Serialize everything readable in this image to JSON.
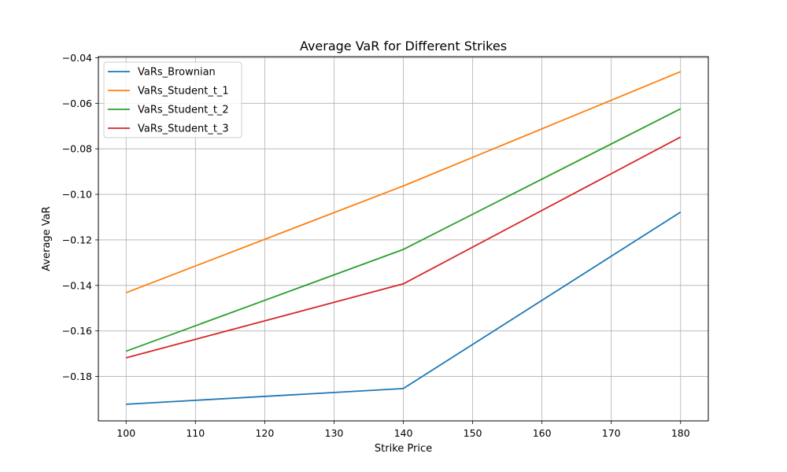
{
  "chart_data": {
    "type": "line",
    "title": "Average VaR for Different Strikes",
    "xlabel": "Strike Price",
    "ylabel": "Average VaR",
    "x": [
      100,
      140,
      180
    ],
    "xlim": [
      96,
      184
    ],
    "ylim": [
      -0.1995,
      -0.0395
    ],
    "xticks": [
      100,
      110,
      120,
      130,
      140,
      150,
      160,
      170,
      180
    ],
    "xtick_labels": [
      "100",
      "110",
      "120",
      "130",
      "140",
      "150",
      "160",
      "170",
      "180"
    ],
    "yticks": [
      -0.18,
      -0.16,
      -0.14,
      -0.12,
      -0.1,
      -0.08,
      -0.06,
      -0.04
    ],
    "ytick_labels": [
      "−0.18",
      "−0.16",
      "−0.14",
      "−0.12",
      "−0.10",
      "−0.08",
      "−0.06",
      "−0.04"
    ],
    "grid": true,
    "legend_position": "top-left",
    "series": [
      {
        "name": "VaRs_Brownian",
        "color": "#1f77b4",
        "values": [
          -0.1922,
          -0.1853,
          -0.1078
        ]
      },
      {
        "name": "VaRs_Student_t_1",
        "color": "#ff7f0e",
        "values": [
          -0.1432,
          -0.0963,
          -0.0461
        ]
      },
      {
        "name": "VaRs_Student_t_2",
        "color": "#2ca02c",
        "values": [
          -0.1689,
          -0.1242,
          -0.0624
        ]
      },
      {
        "name": "VaRs_Student_t_3",
        "color": "#d62728",
        "values": [
          -0.1718,
          -0.1393,
          -0.0748
        ]
      }
    ]
  }
}
